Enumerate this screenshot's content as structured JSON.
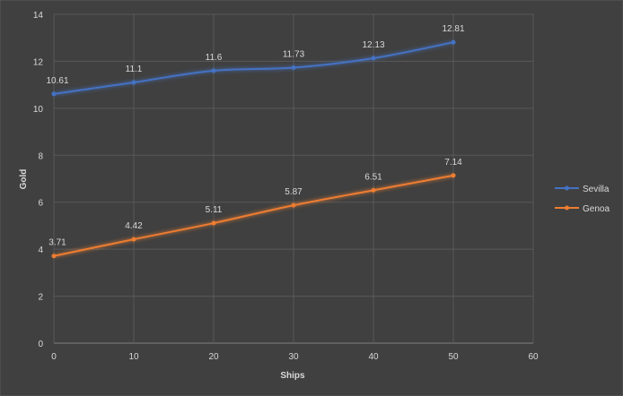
{
  "chart_data": {
    "type": "line",
    "title": "",
    "xlabel": "Ships",
    "ylabel": "Gold",
    "x": [
      0,
      10,
      20,
      30,
      40,
      50
    ],
    "xlim": [
      0,
      60
    ],
    "ylim": [
      0,
      14
    ],
    "xticks": [
      "0",
      "10",
      "20",
      "30",
      "40",
      "50",
      "60"
    ],
    "yticks": [
      "0",
      "2",
      "4",
      "6",
      "8",
      "10",
      "12",
      "14"
    ],
    "grid": true,
    "legend_position": "right",
    "series": [
      {
        "name": "Sevilla",
        "color": "#4472C4",
        "values": [
          10.61,
          11.1,
          11.6,
          11.73,
          12.13,
          12.81
        ],
        "labels": [
          "10.61",
          "11.1",
          "11.6",
          "11.73",
          "12.13",
          "12.81"
        ]
      },
      {
        "name": "Genoa",
        "color": "#ED7D31",
        "values": [
          3.71,
          4.42,
          5.11,
          5.87,
          6.51,
          7.14
        ],
        "labels": [
          "3.71",
          "4.42",
          "5.11",
          "5.87",
          "6.51",
          "7.14"
        ]
      }
    ]
  }
}
